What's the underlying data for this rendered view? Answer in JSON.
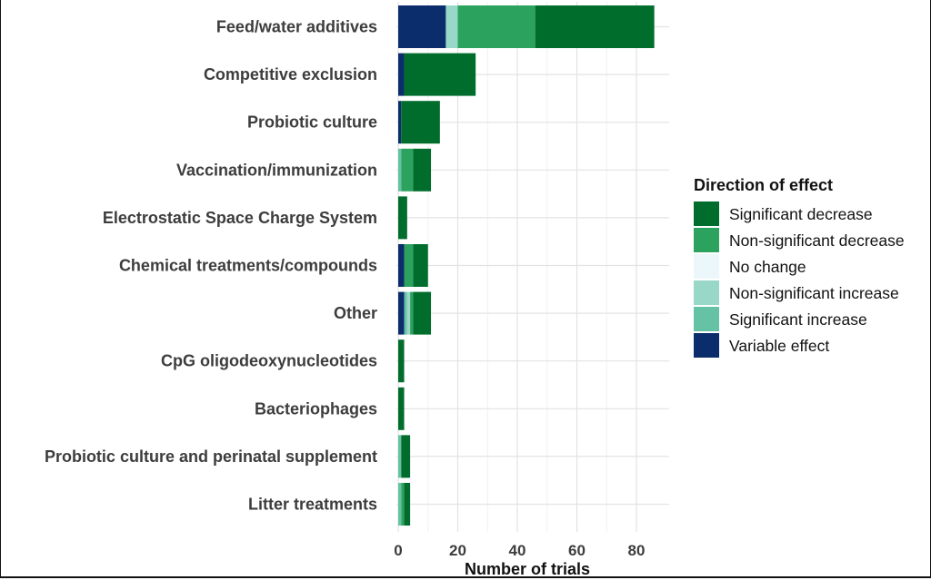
{
  "chart_data": {
    "type": "bar",
    "orientation": "horizontal",
    "stacked": true,
    "xlabel": "Number of trials",
    "ylabel": "",
    "xlim": [
      0,
      88
    ],
    "xticks": [
      0,
      20,
      40,
      60,
      80
    ],
    "grid": true,
    "legend_position": "right",
    "categories": [
      "Feed/water additives",
      "Competitive exclusion",
      "Probiotic culture",
      "Vaccination/immunization",
      "Electrostatic Space Charge System",
      "Chemical treatments/compounds",
      "Other",
      "CpG oligodeoxynucleotides",
      "Bacteriophages",
      "Probiotic culture and perinatal supplement",
      "Litter treatments"
    ],
    "legend": {
      "title": "Direction of effect"
    },
    "series": [
      {
        "name": "Variable effect",
        "color": "#0c2d6b",
        "values": [
          16,
          2,
          1,
          0,
          0,
          2,
          2,
          0,
          0,
          0,
          0
        ]
      },
      {
        "name": "Significant increase",
        "color": "#66c2a4",
        "values": [
          0,
          0,
          0,
          1,
          0,
          0,
          1,
          0,
          0,
          1,
          1
        ]
      },
      {
        "name": "Non-significant increase",
        "color": "#99d8c9",
        "values": [
          4,
          0,
          0,
          0,
          0,
          0,
          1,
          0,
          0,
          0,
          0
        ]
      },
      {
        "name": "No change",
        "color": "#ebf7fb",
        "values": [
          0,
          0,
          0,
          0,
          0,
          0,
          0,
          0,
          0,
          0,
          0
        ]
      },
      {
        "name": "Non-significant decrease",
        "color": "#2ca25f",
        "values": [
          26,
          0,
          0,
          4,
          0,
          3,
          1,
          0,
          0,
          0,
          1
        ]
      },
      {
        "name": "Significant decrease",
        "color": "#006d2c",
        "values": [
          40,
          24,
          13,
          6,
          3,
          5,
          6,
          2,
          2,
          3,
          2
        ]
      }
    ],
    "legend_order": [
      "Significant decrease",
      "Non-significant decrease",
      "No change",
      "Non-significant increase",
      "Significant increase",
      "Variable effect"
    ]
  }
}
